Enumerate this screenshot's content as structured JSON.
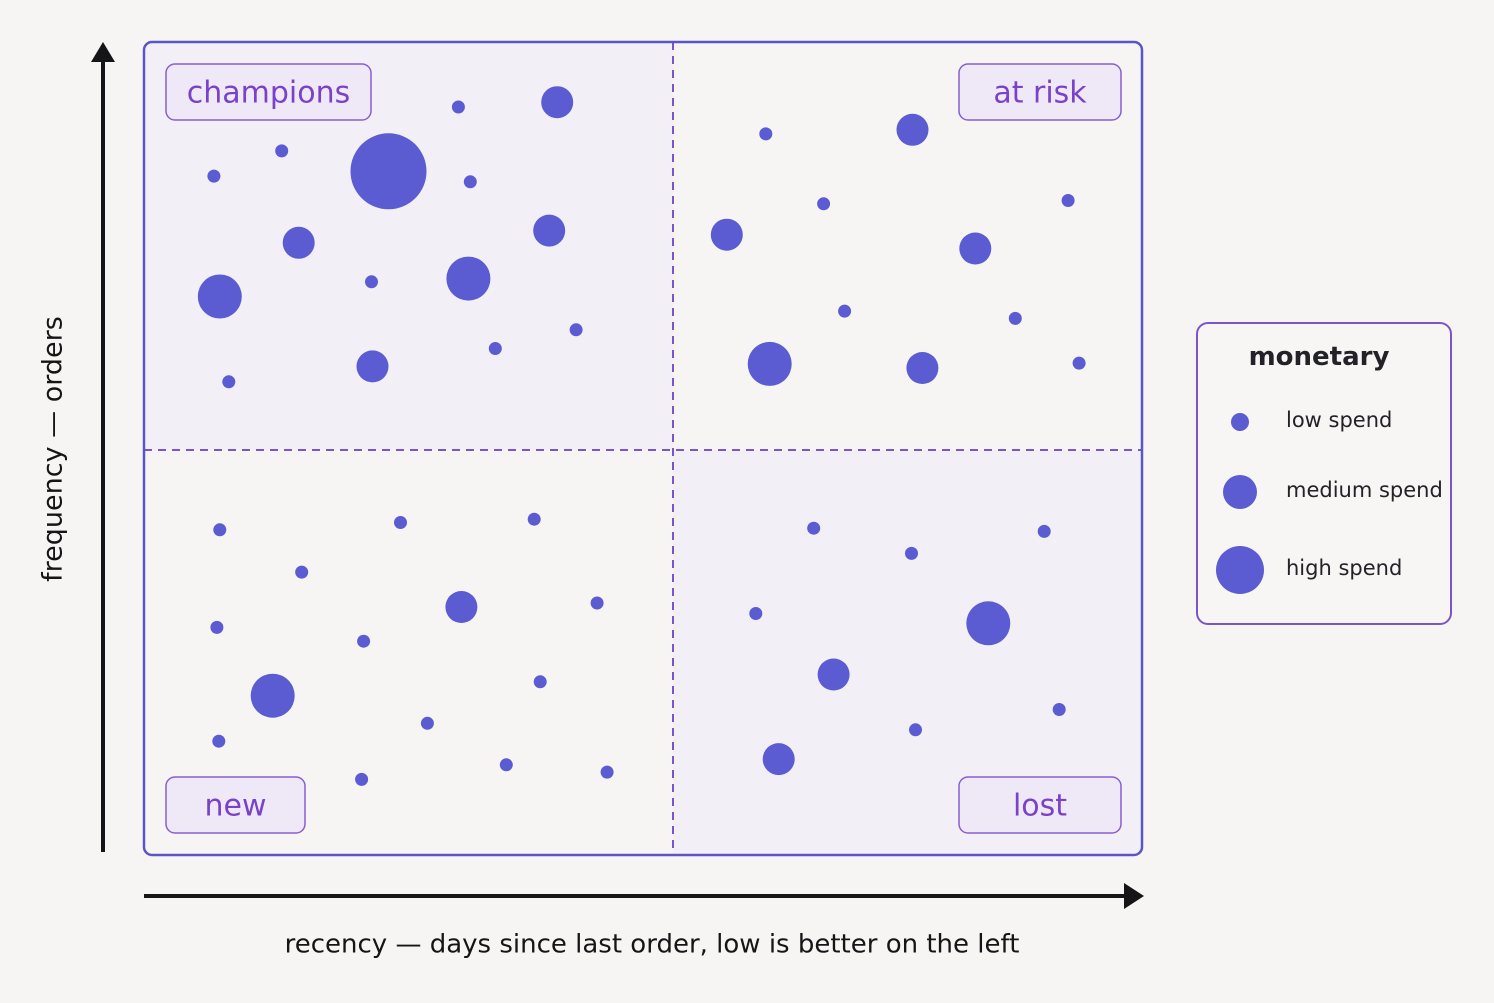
{
  "chart_data": {
    "type": "scatter",
    "title": "",
    "xlabel": "recency — days since last order, low is better on the left",
    "ylabel": "frequency — orders",
    "quadrants": {
      "top_left": "champions",
      "top_right": "at risk",
      "bottom_left": "new",
      "bottom_right": "lost"
    },
    "legend": {
      "title": "monetary",
      "position": "right",
      "items": [
        {
          "label": "low spend",
          "level": 1
        },
        {
          "label": "medium spend",
          "level": 2
        },
        {
          "label": "high spend",
          "level": 3
        }
      ]
    },
    "colors": {
      "point": "#5b5bd2",
      "frame": "#5b55c8",
      "divider": "#7a55c9",
      "label_text": "#7a42c9",
      "label_fill": "#efe8f7",
      "legend_border": "#7a55c9"
    },
    "series": [
      {
        "quadrant": "champions",
        "points": [
          {
            "x": 0.07,
            "y": 0.165,
            "spend": 1
          },
          {
            "x": 0.138,
            "y": 0.134,
            "spend": 1
          },
          {
            "x": 0.315,
            "y": 0.08,
            "spend": 1
          },
          {
            "x": 0.414,
            "y": 0.074,
            "spend": 2
          },
          {
            "x": 0.245,
            "y": 0.159,
            "spend": 3
          },
          {
            "x": 0.327,
            "y": 0.172,
            "spend": 1
          },
          {
            "x": 0.155,
            "y": 0.247,
            "spend": 2
          },
          {
            "x": 0.406,
            "y": 0.232,
            "spend": 2
          },
          {
            "x": 0.076,
            "y": 0.313,
            "spend": 3
          },
          {
            "x": 0.228,
            "y": 0.295,
            "spend": 1
          },
          {
            "x": 0.325,
            "y": 0.291,
            "spend": 3
          },
          {
            "x": 0.433,
            "y": 0.354,
            "spend": 1
          },
          {
            "x": 0.352,
            "y": 0.377,
            "spend": 1
          },
          {
            "x": 0.085,
            "y": 0.418,
            "spend": 1
          },
          {
            "x": 0.229,
            "y": 0.399,
            "spend": 2
          }
        ]
      },
      {
        "quadrant": "at risk",
        "points": [
          {
            "x": 0.623,
            "y": 0.113,
            "spend": 1
          },
          {
            "x": 0.77,
            "y": 0.108,
            "spend": 2
          },
          {
            "x": 0.681,
            "y": 0.199,
            "spend": 1
          },
          {
            "x": 0.926,
            "y": 0.195,
            "spend": 1
          },
          {
            "x": 0.584,
            "y": 0.237,
            "spend": 2
          },
          {
            "x": 0.833,
            "y": 0.254,
            "spend": 2
          },
          {
            "x": 0.702,
            "y": 0.331,
            "spend": 1
          },
          {
            "x": 0.873,
            "y": 0.34,
            "spend": 1
          },
          {
            "x": 0.627,
            "y": 0.396,
            "spend": 3
          },
          {
            "x": 0.78,
            "y": 0.401,
            "spend": 2
          },
          {
            "x": 0.937,
            "y": 0.395,
            "spend": 1
          }
        ]
      },
      {
        "quadrant": "new",
        "points": [
          {
            "x": 0.076,
            "y": 0.6,
            "spend": 1
          },
          {
            "x": 0.257,
            "y": 0.591,
            "spend": 1
          },
          {
            "x": 0.391,
            "y": 0.587,
            "spend": 1
          },
          {
            "x": 0.158,
            "y": 0.652,
            "spend": 1
          },
          {
            "x": 0.318,
            "y": 0.695,
            "spend": 2
          },
          {
            "x": 0.454,
            "y": 0.69,
            "spend": 1
          },
          {
            "x": 0.073,
            "y": 0.72,
            "spend": 1
          },
          {
            "x": 0.22,
            "y": 0.737,
            "spend": 1
          },
          {
            "x": 0.129,
            "y": 0.804,
            "spend": 3
          },
          {
            "x": 0.397,
            "y": 0.787,
            "spend": 1
          },
          {
            "x": 0.284,
            "y": 0.838,
            "spend": 1
          },
          {
            "x": 0.075,
            "y": 0.86,
            "spend": 1
          },
          {
            "x": 0.218,
            "y": 0.907,
            "spend": 1
          },
          {
            "x": 0.363,
            "y": 0.889,
            "spend": 1
          },
          {
            "x": 0.464,
            "y": 0.898,
            "spend": 1
          }
        ]
      },
      {
        "quadrant": "lost",
        "points": [
          {
            "x": 0.671,
            "y": 0.598,
            "spend": 1
          },
          {
            "x": 0.769,
            "y": 0.629,
            "spend": 1
          },
          {
            "x": 0.902,
            "y": 0.602,
            "spend": 1
          },
          {
            "x": 0.613,
            "y": 0.703,
            "spend": 1
          },
          {
            "x": 0.846,
            "y": 0.715,
            "spend": 3
          },
          {
            "x": 0.691,
            "y": 0.778,
            "spend": 2
          },
          {
            "x": 0.917,
            "y": 0.821,
            "spend": 1
          },
          {
            "x": 0.773,
            "y": 0.846,
            "spend": 1
          },
          {
            "x": 0.636,
            "y": 0.882,
            "spend": 2
          }
        ]
      }
    ]
  }
}
